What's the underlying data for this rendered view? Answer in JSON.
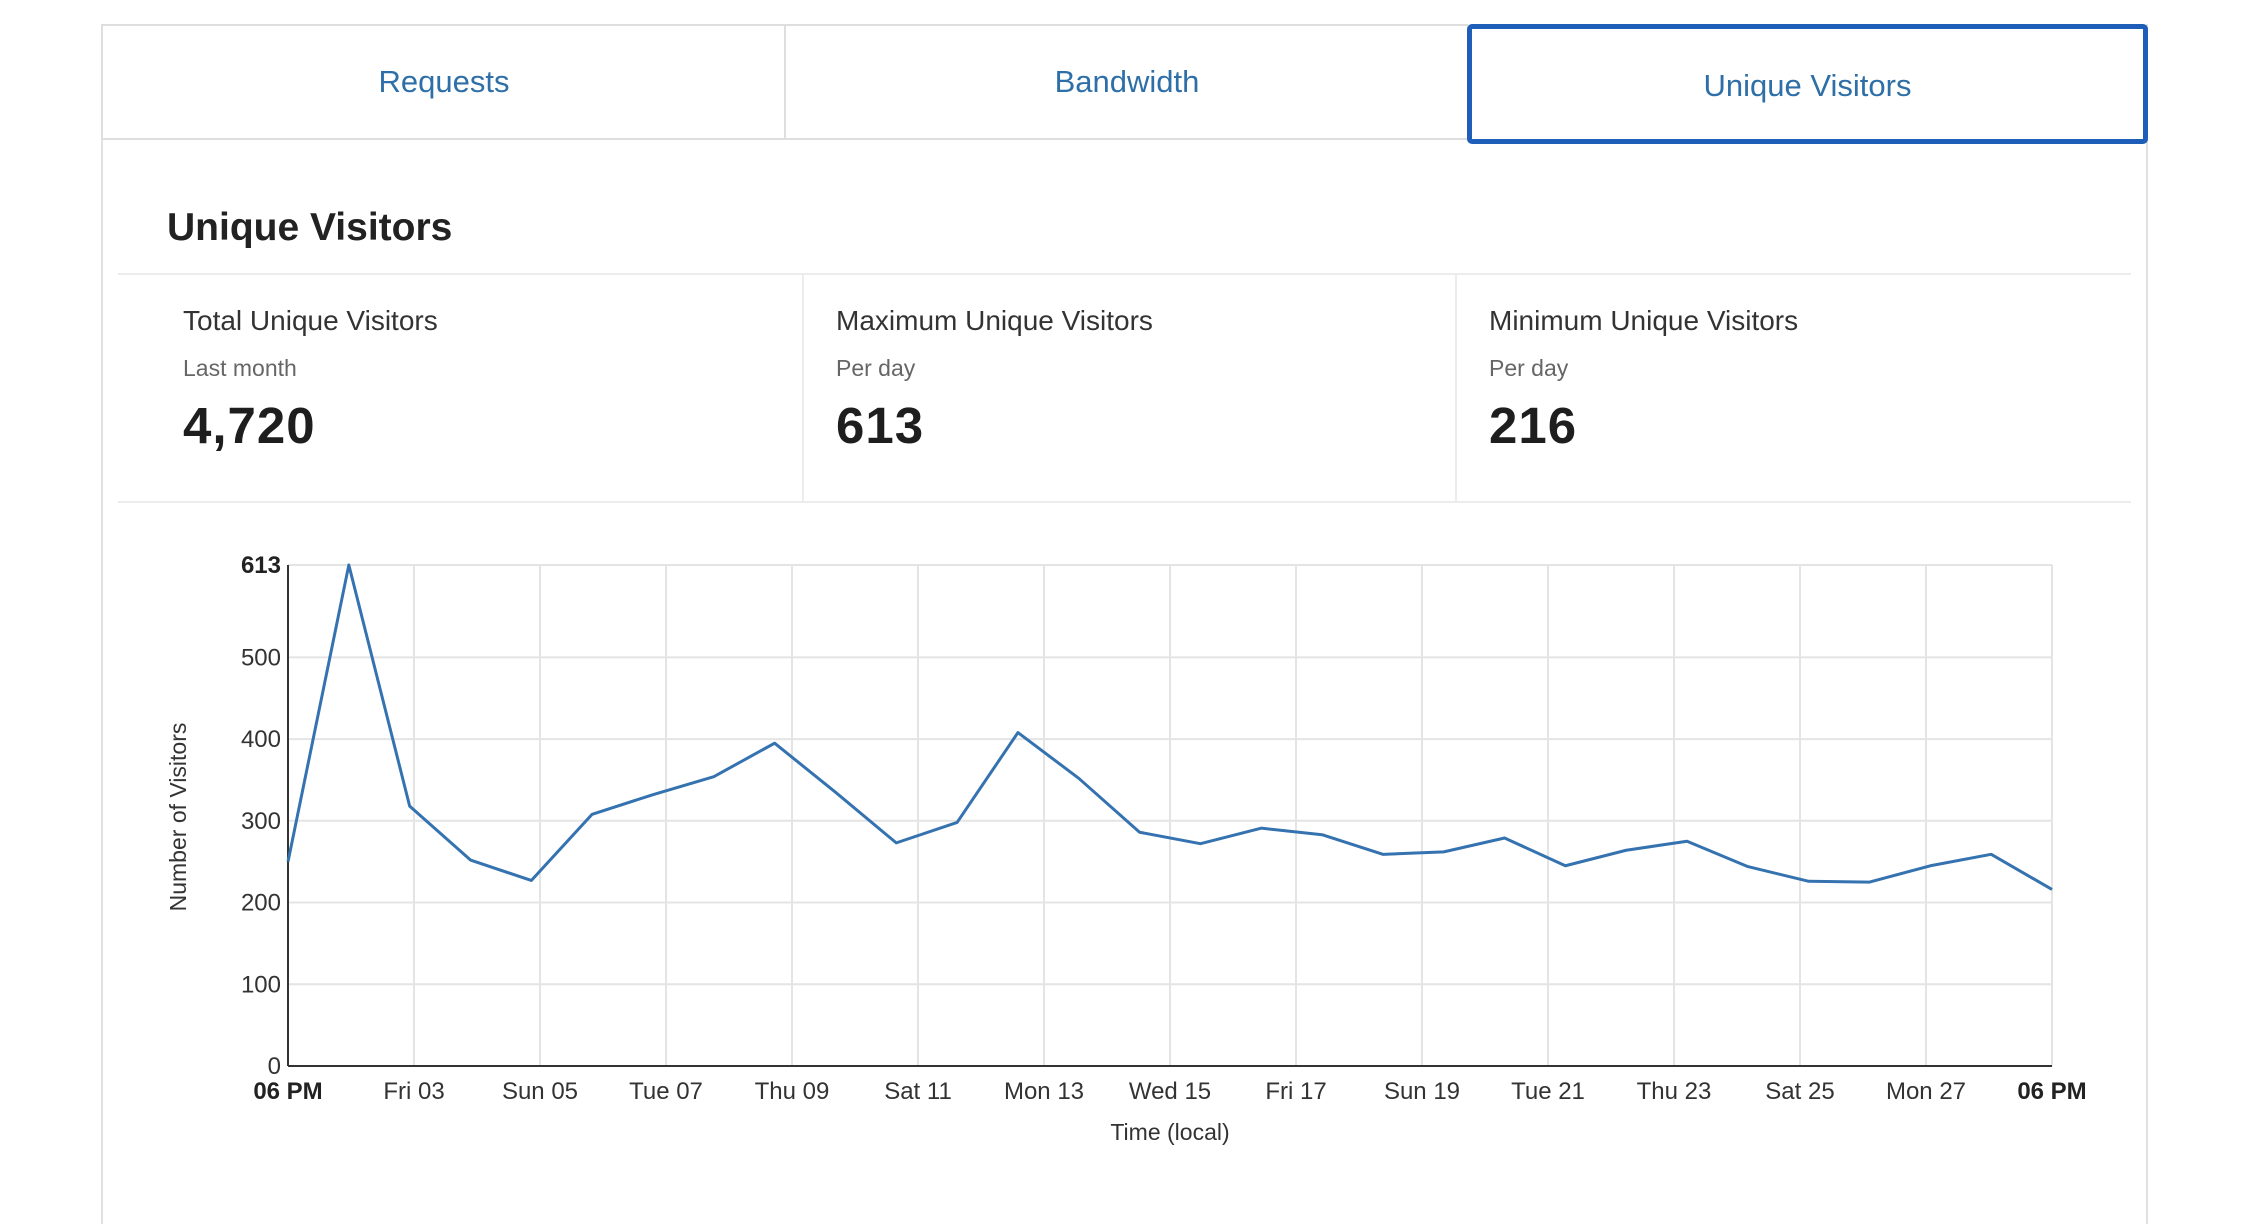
{
  "tabs": [
    {
      "label": "Requests",
      "active": false
    },
    {
      "label": "Bandwidth",
      "active": false
    },
    {
      "label": "Unique Visitors",
      "active": true
    }
  ],
  "section": {
    "title": "Unique Visitors"
  },
  "stats": [
    {
      "label": "Total Unique Visitors",
      "sub": "Last month",
      "value": "4,720"
    },
    {
      "label": "Maximum Unique Visitors",
      "sub": "Per day",
      "value": "613"
    },
    {
      "label": "Minimum Unique Visitors",
      "sub": "Per day",
      "value": "216"
    }
  ],
  "colors": {
    "accent": "#2f6fa8",
    "line": "#3572b0",
    "active_border": "#1f5eb8"
  },
  "chart_data": {
    "type": "line",
    "xlabel": "Time (local)",
    "ylabel": "Number of Visitors",
    "ylim": [
      0,
      613
    ],
    "yticks": [
      "0",
      "100",
      "200",
      "300",
      "400",
      "500",
      "613"
    ],
    "xticks": [
      "06 PM",
      "Fri 03",
      "Sun 05",
      "Tue 07",
      "Thu 09",
      "Sat 11",
      "Mon 13",
      "Wed 15",
      "Fri 17",
      "Sun 19",
      "Tue 21",
      "Thu 23",
      "Sat 25",
      "Mon 27",
      "06 PM"
    ],
    "bold_xticks": [
      0,
      14
    ],
    "grid": true,
    "series": [
      {
        "values": [
          250,
          613,
          318,
          252,
          227,
          308,
          332,
          354,
          395,
          335,
          273,
          298,
          408,
          352,
          286,
          272,
          291,
          283,
          259,
          262,
          279,
          245,
          264,
          275,
          244,
          226,
          225,
          245,
          259,
          216
        ]
      }
    ]
  }
}
